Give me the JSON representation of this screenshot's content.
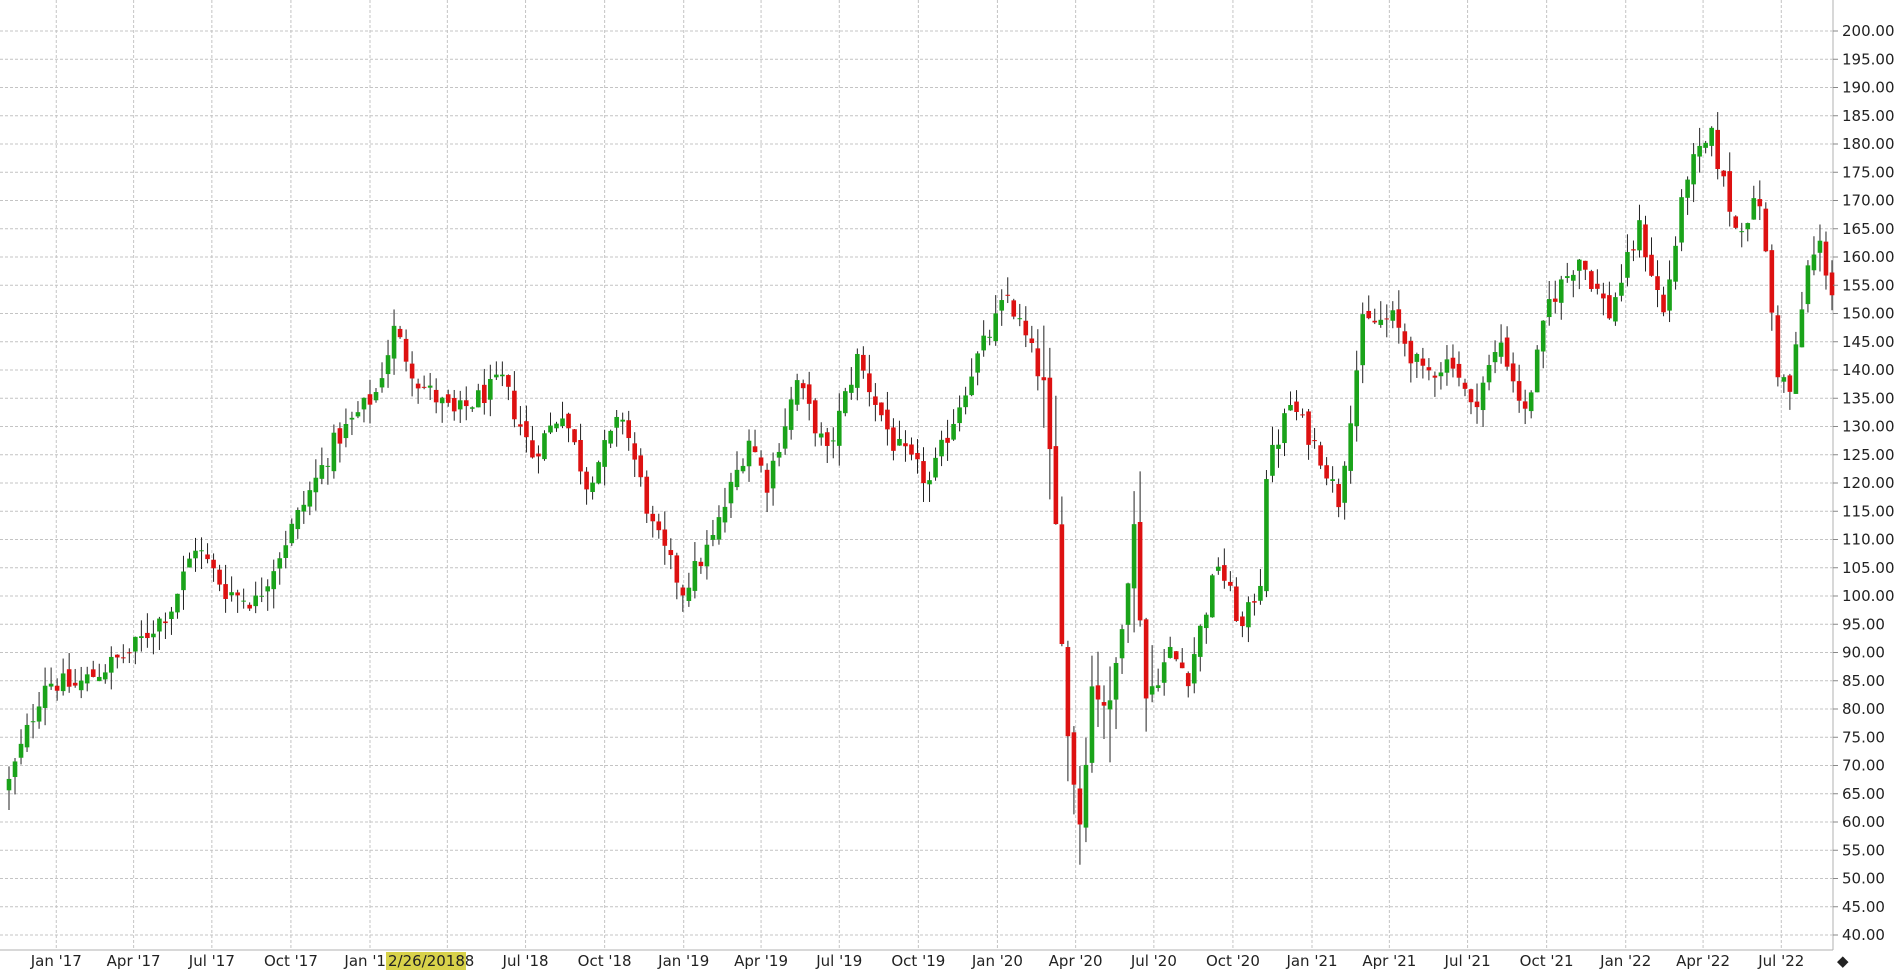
{
  "chart_data": {
    "type": "candlestick",
    "title": "",
    "xlabel": "",
    "ylabel": "",
    "ylim": [
      40,
      200
    ],
    "y_ticks": [
      "200.00",
      "195.00",
      "190.00",
      "185.00",
      "180.00",
      "175.00",
      "170.00",
      "165.00",
      "160.00",
      "155.00",
      "150.00",
      "145.00",
      "140.00",
      "135.00",
      "130.00",
      "125.00",
      "120.00",
      "115.00",
      "110.00",
      "105.00",
      "100.00",
      "95.00",
      "90.00",
      "85.00",
      "80.00",
      "75.00",
      "70.00",
      "65.00",
      "60.00",
      "55.00",
      "50.00",
      "45.00",
      "40.00"
    ],
    "x_ticks": [
      "Jan '17",
      "Apr '17",
      "Jul '17",
      "Oct '17",
      "Jan '18",
      "Apr '18",
      "Jul '18",
      "Oct '18",
      "Jan '19",
      "Apr '19",
      "Jul '19",
      "Oct '19",
      "Jan '20",
      "Apr '20",
      "Jul '20",
      "Oct '20",
      "Jan '21",
      "Apr '21",
      "Jul '21",
      "Oct '21",
      "Jan '22",
      "Apr '22",
      "Jul '22"
    ],
    "x_tick_dates": [
      "2017-01-01",
      "2017-04-01",
      "2017-07-01",
      "2017-10-01",
      "2018-01-01",
      "2018-04-01",
      "2018-07-01",
      "2018-10-01",
      "2019-01-01",
      "2019-04-01",
      "2019-07-01",
      "2019-10-01",
      "2020-01-01",
      "2020-04-01",
      "2020-07-01",
      "2020-10-01",
      "2021-01-01",
      "2021-04-01",
      "2021-07-01",
      "2021-10-01",
      "2022-01-01",
      "2022-04-01",
      "2022-07-01"
    ],
    "x_range": [
      "2016-11-07",
      "2022-08-29"
    ],
    "cursor_label": "2/26/2018",
    "grid": true,
    "up_color": "#1aa31a",
    "down_color": "#dd1111",
    "cursor_label_color": "#d8d24a",
    "anchor_closes": [
      {
        "date": "2016-11-07",
        "close": 67
      },
      {
        "date": "2016-12-19",
        "close": 85
      },
      {
        "date": "2017-01-23",
        "close": 84
      },
      {
        "date": "2017-03-27",
        "close": 90
      },
      {
        "date": "2017-05-15",
        "close": 98
      },
      {
        "date": "2017-06-12",
        "close": 109
      },
      {
        "date": "2017-07-17",
        "close": 101
      },
      {
        "date": "2017-08-21",
        "close": 99
      },
      {
        "date": "2017-10-02",
        "close": 112
      },
      {
        "date": "2017-11-20",
        "close": 127
      },
      {
        "date": "2018-01-08",
        "close": 136
      },
      {
        "date": "2018-01-29",
        "close": 147
      },
      {
        "date": "2018-02-26",
        "close": 138
      },
      {
        "date": "2018-04-09",
        "close": 132
      },
      {
        "date": "2018-06-04",
        "close": 138
      },
      {
        "date": "2018-07-09",
        "close": 125
      },
      {
        "date": "2018-08-13",
        "close": 133
      },
      {
        "date": "2018-09-10",
        "close": 120
      },
      {
        "date": "2018-10-22",
        "close": 132
      },
      {
        "date": "2018-11-26",
        "close": 112
      },
      {
        "date": "2018-12-31",
        "close": 101
      },
      {
        "date": "2019-02-04",
        "close": 110
      },
      {
        "date": "2019-03-18",
        "close": 128
      },
      {
        "date": "2019-04-08",
        "close": 120
      },
      {
        "date": "2019-05-13",
        "close": 138
      },
      {
        "date": "2019-06-17",
        "close": 125
      },
      {
        "date": "2019-07-22",
        "close": 142
      },
      {
        "date": "2019-09-02",
        "close": 127
      },
      {
        "date": "2019-10-14",
        "close": 120
      },
      {
        "date": "2019-12-02",
        "close": 140
      },
      {
        "date": "2020-01-13",
        "close": 153
      },
      {
        "date": "2020-02-10",
        "close": 143
      },
      {
        "date": "2020-02-24",
        "close": 137
      },
      {
        "date": "2020-03-09",
        "close": 112
      },
      {
        "date": "2020-03-23",
        "close": 75
      },
      {
        "date": "2020-04-06",
        "close": 60
      },
      {
        "date": "2020-04-20",
        "close": 84
      },
      {
        "date": "2020-05-11",
        "close": 80
      },
      {
        "date": "2020-06-08",
        "close": 112
      },
      {
        "date": "2020-06-22",
        "close": 82
      },
      {
        "date": "2020-07-20",
        "close": 90
      },
      {
        "date": "2020-08-10",
        "close": 86
      },
      {
        "date": "2020-09-14",
        "close": 106
      },
      {
        "date": "2020-10-12",
        "close": 94
      },
      {
        "date": "2020-11-02",
        "close": 103
      },
      {
        "date": "2020-11-09",
        "close": 122
      },
      {
        "date": "2020-12-07",
        "close": 134
      },
      {
        "date": "2021-01-11",
        "close": 125
      },
      {
        "date": "2021-02-01",
        "close": 117
      },
      {
        "date": "2021-03-01",
        "close": 148
      },
      {
        "date": "2021-04-05",
        "close": 149
      },
      {
        "date": "2021-05-10",
        "close": 139
      },
      {
        "date": "2021-06-14",
        "close": 142
      },
      {
        "date": "2021-07-05",
        "close": 133
      },
      {
        "date": "2021-08-09",
        "close": 145
      },
      {
        "date": "2021-09-06",
        "close": 132
      },
      {
        "date": "2021-10-04",
        "close": 152
      },
      {
        "date": "2021-11-08",
        "close": 160
      },
      {
        "date": "2021-12-13",
        "close": 150
      },
      {
        "date": "2022-01-17",
        "close": 165
      },
      {
        "date": "2022-02-14",
        "close": 150
      },
      {
        "date": "2022-03-14",
        "close": 175
      },
      {
        "date": "2022-04-11",
        "close": 181
      },
      {
        "date": "2022-05-09",
        "close": 165
      },
      {
        "date": "2022-06-06",
        "close": 170
      },
      {
        "date": "2022-06-27",
        "close": 140
      },
      {
        "date": "2022-07-11",
        "close": 136
      },
      {
        "date": "2022-08-01",
        "close": 158
      },
      {
        "date": "2022-08-15",
        "close": 162
      },
      {
        "date": "2022-08-29",
        "close": 154
      }
    ]
  }
}
